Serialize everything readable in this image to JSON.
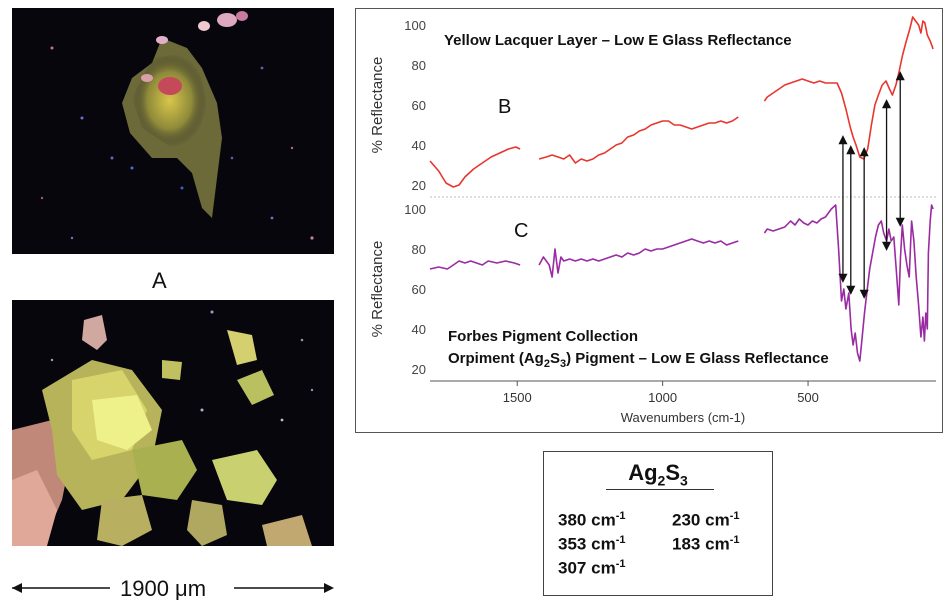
{
  "figure": {
    "label_a": "A",
    "scale_text": "1900 μm",
    "formula": {
      "base": "Ag",
      "sub1": "2",
      "mid": "S",
      "sub2": "3"
    },
    "peaks": [
      {
        "value": "380",
        "unit": "cm",
        "exp": "-1"
      },
      {
        "value": "353",
        "unit": "cm",
        "exp": "-1"
      },
      {
        "value": "307",
        "unit": "cm",
        "exp": "-1"
      },
      {
        "value": "230",
        "unit": "cm",
        "exp": "-1"
      },
      {
        "value": "183",
        "unit": "cm",
        "exp": "-1"
      }
    ]
  },
  "chart_data": {
    "type": "line",
    "xlabel": "Wavenumbers (cm-1)",
    "xlim": [
      1800,
      60
    ],
    "x_reversed": true,
    "xticks": [
      "1500",
      "1000",
      "500"
    ],
    "colors": {
      "top": "#e8362f",
      "bottom": "#9a2ba3",
      "arrow": "#111111"
    },
    "panels": [
      {
        "id": "top",
        "title": "Yellow Lacquer Layer – Low E Glass Reflectance",
        "ylabel": "% Reflectance",
        "ylim": [
          15,
          105
        ],
        "yticks": [
          "100",
          "80",
          "60",
          "40",
          "20"
        ],
        "series_label": "B",
        "segments": [
          [
            [
              1800,
              32
            ],
            [
              1770,
              27
            ],
            [
              1745,
              21
            ],
            [
              1720,
              19
            ],
            [
              1700,
              20
            ],
            [
              1680,
              24
            ],
            [
              1650,
              28
            ],
            [
              1620,
              31
            ],
            [
              1590,
              34
            ],
            [
              1560,
              36
            ],
            [
              1530,
              38
            ],
            [
              1505,
              39
            ],
            [
              1490,
              38
            ]
          ],
          [
            [
              1425,
              33
            ],
            [
              1400,
              34
            ],
            [
              1380,
              35
            ],
            [
              1360,
              34
            ],
            [
              1340,
              33
            ],
            [
              1320,
              35
            ],
            [
              1300,
              31
            ],
            [
              1280,
              33
            ],
            [
              1260,
              32
            ],
            [
              1240,
              33
            ],
            [
              1220,
              35
            ],
            [
              1200,
              36
            ],
            [
              1180,
              38
            ],
            [
              1160,
              40
            ],
            [
              1140,
              41
            ],
            [
              1120,
              44
            ],
            [
              1100,
              45
            ],
            [
              1080,
              47
            ],
            [
              1060,
              48
            ],
            [
              1040,
              50
            ],
            [
              1020,
              51
            ],
            [
              1000,
              52
            ],
            [
              980,
              52
            ],
            [
              960,
              50
            ],
            [
              940,
              50
            ],
            [
              920,
              49
            ],
            [
              900,
              48
            ],
            [
              880,
              49
            ],
            [
              860,
              50
            ],
            [
              840,
              51
            ],
            [
              820,
              51
            ],
            [
              800,
              52
            ],
            [
              780,
              51
            ],
            [
              760,
              52
            ],
            [
              740,
              54
            ]
          ],
          [
            [
              650,
              62
            ],
            [
              640,
              64
            ],
            [
              620,
              66
            ],
            [
              600,
              68
            ],
            [
              580,
              70
            ],
            [
              560,
              71
            ],
            [
              540,
              72
            ],
            [
              520,
              73
            ],
            [
              500,
              72
            ],
            [
              480,
              71
            ],
            [
              460,
              72
            ],
            [
              440,
              71
            ],
            [
              420,
              71
            ],
            [
              400,
              71
            ],
            [
              385,
              66
            ],
            [
              370,
              58
            ],
            [
              355,
              49
            ],
            [
              345,
              44
            ],
            [
              335,
              40
            ],
            [
              322,
              34
            ],
            [
              308,
              33
            ],
            [
              295,
              38
            ],
            [
              282,
              50
            ],
            [
              270,
              60
            ],
            [
              258,
              65
            ],
            [
              245,
              70
            ],
            [
              232,
              72
            ],
            [
              220,
              68
            ],
            [
              210,
              65
            ],
            [
              198,
              70
            ],
            [
              188,
              76
            ],
            [
              175,
              85
            ],
            [
              162,
              92
            ],
            [
              150,
              98
            ],
            [
              140,
              104
            ],
            [
              130,
              102
            ],
            [
              120,
              100
            ],
            [
              112,
              96
            ],
            [
              105,
              102
            ],
            [
              98,
              101
            ],
            [
              90,
              95
            ],
            [
              80,
              92
            ],
            [
              70,
              88
            ]
          ]
        ]
      },
      {
        "id": "bottom",
        "title": "Forbes Pigment Collection",
        "subtitle": {
          "a": "Orpiment (Ag",
          "b": "2",
          "c": "S",
          "d": "3",
          "e": ") Pigment – Low E Glass Reflectance"
        },
        "ylabel": "% Reflectance",
        "ylim": [
          15,
          105
        ],
        "yticks": [
          "100",
          "80",
          "60",
          "40",
          "20"
        ],
        "series_label": "C",
        "segments": [
          [
            [
              1800,
              70
            ],
            [
              1770,
              71
            ],
            [
              1740,
              70
            ],
            [
              1720,
              72
            ],
            [
              1700,
              74
            ],
            [
              1680,
              73
            ],
            [
              1660,
              74
            ],
            [
              1640,
              73
            ],
            [
              1620,
              72
            ],
            [
              1600,
              74
            ],
            [
              1570,
              73
            ],
            [
              1540,
              74
            ],
            [
              1510,
              73
            ],
            [
              1490,
              72
            ]
          ],
          [
            [
              1425,
              72
            ],
            [
              1410,
              76
            ],
            [
              1400,
              74
            ],
            [
              1390,
              72
            ],
            [
              1380,
              66
            ],
            [
              1370,
              80
            ],
            [
              1360,
              68
            ],
            [
              1350,
              76
            ],
            [
              1340,
              74
            ],
            [
              1320,
              75
            ],
            [
              1300,
              74
            ],
            [
              1280,
              75
            ],
            [
              1260,
              74
            ],
            [
              1240,
              75
            ],
            [
              1220,
              74
            ],
            [
              1200,
              75
            ],
            [
              1180,
              76
            ],
            [
              1160,
              77
            ],
            [
              1140,
              76
            ],
            [
              1120,
              78
            ],
            [
              1100,
              77
            ],
            [
              1080,
              78
            ],
            [
              1060,
              80
            ],
            [
              1040,
              79
            ],
            [
              1020,
              80
            ],
            [
              1000,
              80
            ],
            [
              980,
              81
            ],
            [
              960,
              82
            ],
            [
              940,
              83
            ],
            [
              920,
              84
            ],
            [
              900,
              85
            ],
            [
              880,
              84
            ],
            [
              860,
              83
            ],
            [
              840,
              84
            ],
            [
              820,
              83
            ],
            [
              800,
              84
            ],
            [
              780,
              82
            ],
            [
              760,
              83
            ],
            [
              740,
              84
            ]
          ],
          [
            [
              650,
              88
            ],
            [
              640,
              90
            ],
            [
              620,
              89
            ],
            [
              600,
              90
            ],
            [
              580,
              91
            ],
            [
              560,
              94
            ],
            [
              545,
              92
            ],
            [
              530,
              95
            ],
            [
              515,
              93
            ],
            [
              500,
              92
            ],
            [
              485,
              94
            ],
            [
              470,
              93
            ],
            [
              455,
              95
            ],
            [
              440,
              96
            ],
            [
              420,
              100
            ],
            [
              405,
              102
            ],
            [
              395,
              80
            ],
            [
              385,
              54
            ],
            [
              377,
              60
            ],
            [
              370,
              50
            ],
            [
              360,
              58
            ],
            [
              352,
              40
            ],
            [
              345,
              32
            ],
            [
              338,
              38
            ],
            [
              330,
              28
            ],
            [
              322,
              24
            ],
            [
              315,
              34
            ],
            [
              306,
              48
            ],
            [
              298,
              58
            ],
            [
              288,
              70
            ],
            [
              278,
              78
            ],
            [
              268,
              86
            ],
            [
              258,
              92
            ],
            [
              248,
              94
            ],
            [
              240,
              88
            ],
            [
              230,
              84
            ],
            [
              222,
              90
            ],
            [
              214,
              84
            ],
            [
              205,
              86
            ],
            [
              196,
              68
            ],
            [
              188,
              52
            ],
            [
              182,
              76
            ],
            [
              176,
              92
            ],
            [
              168,
              80
            ],
            [
              160,
              72
            ],
            [
              152,
              66
            ],
            [
              144,
              94
            ],
            [
              136,
              84
            ],
            [
              128,
              66
            ],
            [
              120,
              52
            ],
            [
              112,
              36
            ],
            [
              105,
              46
            ],
            [
              100,
              34
            ],
            [
              95,
              48
            ],
            [
              90,
              40
            ],
            [
              86,
              78
            ],
            [
              80,
              94
            ],
            [
              75,
              102
            ],
            [
              70,
              100
            ]
          ]
        ]
      }
    ],
    "arrows": [
      {
        "x": 380,
        "y1": 44,
        "y2": 64
      },
      {
        "x": 353,
        "y1": 39,
        "y2": 58
      },
      {
        "x": 307,
        "y1": 38,
        "y2": 56
      },
      {
        "x": 230,
        "y1": 62,
        "y2": 80
      },
      {
        "x": 183,
        "y1": 76,
        "y2": 92
      }
    ]
  }
}
